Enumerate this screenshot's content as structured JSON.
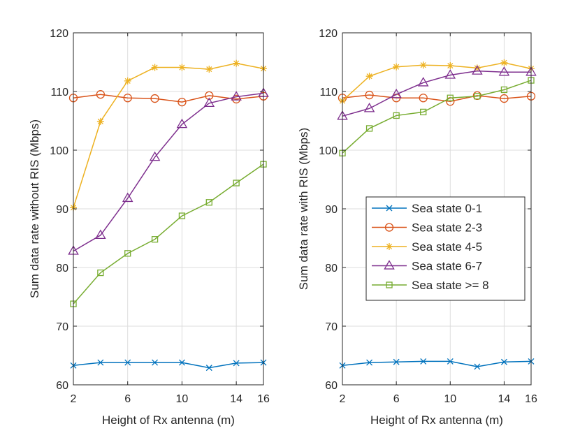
{
  "chart_data": [
    {
      "type": "line",
      "title": "",
      "xlabel": "Height of Rx antenna (m)",
      "ylabel": "Sum data rate without RIS (Mbps)",
      "xlim": [
        2,
        16
      ],
      "ylim": [
        60,
        120
      ],
      "xticks": [
        2,
        6,
        10,
        14,
        16
      ],
      "yticks": [
        60,
        70,
        80,
        90,
        100,
        110,
        120
      ],
      "grid": true,
      "x": [
        2,
        4,
        6,
        8,
        10,
        12,
        14,
        16
      ],
      "series": [
        {
          "name": "Sea state 0-1",
          "color": "#0072BD",
          "marker": "x",
          "values": [
            63.3,
            63.8,
            63.8,
            63.8,
            63.8,
            62.9,
            63.7,
            63.8
          ]
        },
        {
          "name": "Sea state 2-3",
          "color": "#D95319",
          "marker": "circle",
          "values": [
            108.9,
            109.5,
            108.9,
            108.8,
            108.2,
            109.3,
            108.7,
            109.2
          ]
        },
        {
          "name": "Sea state 4-5",
          "color": "#EDB120",
          "marker": "star",
          "values": [
            90.2,
            104.9,
            111.8,
            114.1,
            114.1,
            113.8,
            114.8,
            113.9
          ]
        },
        {
          "name": "Sea state 6-7",
          "color": "#7E2F8E",
          "marker": "triangle",
          "values": [
            82.8,
            85.5,
            91.8,
            98.8,
            104.4,
            108.0,
            109.1,
            109.7
          ]
        },
        {
          "name": "Sea state >= 8",
          "color": "#77AC30",
          "marker": "square",
          "values": [
            73.8,
            79.1,
            82.4,
            84.8,
            88.8,
            91.1,
            94.4,
            97.6
          ]
        }
      ]
    },
    {
      "type": "line",
      "title": "",
      "xlabel": "Height of Rx antenna (m)",
      "ylabel": "Sum data rate with RIS (Mbps)",
      "xlim": [
        2,
        16
      ],
      "ylim": [
        60,
        120
      ],
      "xticks": [
        2,
        6,
        10,
        14,
        16
      ],
      "yticks": [
        60,
        70,
        80,
        90,
        100,
        110,
        120
      ],
      "grid": true,
      "legend_location": "center-right",
      "x": [
        2,
        4,
        6,
        8,
        10,
        12,
        14,
        16
      ],
      "series": [
        {
          "name": "Sea state 0-1",
          "color": "#0072BD",
          "marker": "x",
          "values": [
            63.3,
            63.8,
            63.9,
            64.0,
            64.0,
            63.1,
            63.9,
            64.0
          ]
        },
        {
          "name": "Sea state 2-3",
          "color": "#D95319",
          "marker": "circle",
          "values": [
            108.9,
            109.4,
            108.9,
            108.9,
            108.3,
            109.3,
            108.8,
            109.2
          ]
        },
        {
          "name": "Sea state 4-5",
          "color": "#EDB120",
          "marker": "star",
          "values": [
            108.4,
            112.6,
            114.2,
            114.5,
            114.4,
            114.0,
            114.9,
            113.9
          ]
        },
        {
          "name": "Sea state 6-7",
          "color": "#7E2F8E",
          "marker": "triangle",
          "values": [
            105.8,
            107.1,
            109.5,
            111.5,
            112.8,
            113.5,
            113.3,
            113.3
          ]
        },
        {
          "name": "Sea state >= 8",
          "color": "#77AC30",
          "marker": "square",
          "values": [
            99.5,
            103.7,
            105.9,
            106.5,
            108.9,
            109.2,
            110.3,
            111.9
          ]
        }
      ]
    }
  ]
}
